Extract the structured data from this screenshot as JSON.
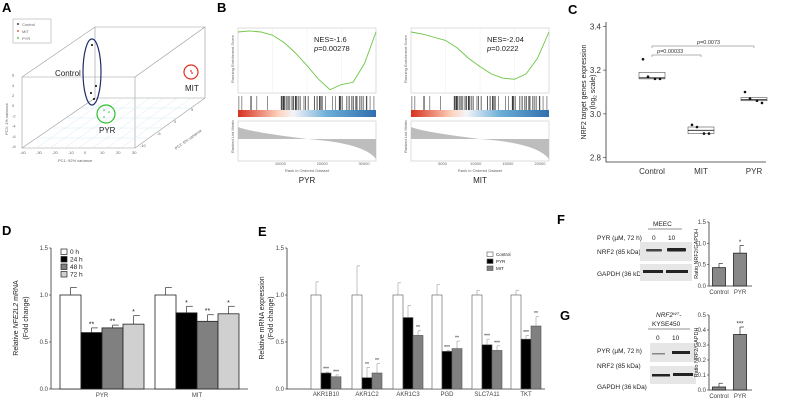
{
  "panels": {
    "A": "A",
    "B": "B",
    "C": "C",
    "D": "D",
    "E": "E",
    "F": "F",
    "G": "G"
  },
  "colors": {
    "control": "#1f2d6b",
    "mit": "#e03020",
    "pyr": "#2bbf2b",
    "gsea_line": "#6cc644"
  },
  "chart_data": [
    {
      "id": "A",
      "type": "scatter",
      "title": "PCA",
      "legend": [
        "Control",
        "MIT",
        "PYR"
      ],
      "legend_position": "top-left",
      "xlabel": "PC1: 92% variance",
      "ylabel": "PC3: 1% variance",
      "zlabel": "PC2: 6% variance",
      "x_ticks": [
        "-40",
        "-30",
        "-20",
        "-10",
        "0",
        "10",
        "20",
        "30"
      ],
      "y_ticks": [
        "-8",
        "-6",
        "-4",
        "-2",
        "0",
        "2",
        "4",
        "6"
      ],
      "z_ticks": [
        "-10",
        "-5",
        "0",
        "5"
      ],
      "group_labels": [
        "Control",
        "MIT",
        "PYR"
      ]
    },
    {
      "id": "B1",
      "type": "line",
      "title": "PYR",
      "xlabel": "Rank in Ordered Dataset",
      "ylabel": "Running Enrichment Score",
      "ylabel2": "Ranked List Metric",
      "annotation_nes": "NES=-1.6",
      "annotation_p_prefix": "p",
      "annotation_p": "=0.00278",
      "x_ticks": [
        "10000",
        "20000",
        "30000"
      ],
      "es": [
        0,
        0.01,
        0.0,
        -0.03,
        -0.1,
        -0.2,
        -0.32,
        -0.45,
        -0.55,
        -0.5,
        -0.48,
        -0.3,
        0
      ]
    },
    {
      "id": "B2",
      "type": "line",
      "title": "MIT",
      "xlabel": "Rank in Ordered Dataset",
      "ylabel": "Running Enrichment Score",
      "ylabel2": "Ranked List Metric",
      "annotation_nes": "NES=-2.04",
      "annotation_p_prefix": "p",
      "annotation_p": "=0.0222",
      "x_ticks": [
        "5000",
        "10000",
        "15000",
        "20000"
      ],
      "es": [
        0,
        -0.02,
        -0.05,
        -0.08,
        -0.15,
        -0.25,
        -0.33,
        -0.4,
        -0.44,
        -0.45,
        -0.4,
        -0.25,
        0
      ]
    },
    {
      "id": "C",
      "type": "box",
      "ylabel": "NRF2 target genes expression",
      "ylabel2": "(log",
      "ylabel_sub": "2",
      "ylabel3": " scale)",
      "categories": [
        "Control",
        "MIT",
        "PYR"
      ],
      "ylim": [
        2.78,
        3.42
      ],
      "y_ticks": [
        "2.8",
        "3.0",
        "3.2",
        "3.4"
      ],
      "points": [
        [
          3.25,
          3.17,
          3.16,
          3.16
        ],
        [
          2.95,
          2.94,
          2.91,
          2.91
        ],
        [
          3.1,
          3.07,
          3.06,
          3.05
        ]
      ],
      "box": [
        [
          3.16,
          3.165,
          3.19
        ],
        [
          2.91,
          2.925,
          2.94
        ],
        [
          3.06,
          3.065,
          3.075
        ]
      ],
      "comparisons": [
        {
          "from": 0,
          "to": 1,
          "p_prefix": "p",
          "p": "=0.00033"
        },
        {
          "from": 0,
          "to": 2,
          "p_prefix": "p",
          "p": "=0.0073"
        }
      ]
    },
    {
      "id": "D",
      "type": "bar",
      "ylabel": "Relative NFE2L2 mRNA",
      "ylabel_pre": "Relative ",
      "ylabel_it": "NFE2L2",
      "ylabel_post": " mRNA",
      "ylabel2": "(Fold change)",
      "categories": [
        "PYR",
        "MIT"
      ],
      "ylim": [
        0,
        1.5
      ],
      "y_ticks": [
        "0.0",
        "0.5",
        "1.0",
        "1.5"
      ],
      "series": [
        {
          "name": "0 h",
          "color": "#ffffff",
          "values": [
            1.0,
            1.0
          ],
          "err": [
            0.08,
            0.08
          ],
          "sig": [
            "",
            ""
          ]
        },
        {
          "name": "24 h",
          "color": "#000000",
          "values": [
            0.6,
            0.81
          ],
          "err": [
            0.05,
            0.07
          ],
          "sig": [
            "**",
            "*"
          ]
        },
        {
          "name": "48 h",
          "color": "#808080",
          "values": [
            0.65,
            0.72
          ],
          "err": [
            0.03,
            0.07
          ],
          "sig": [
            "**",
            "**"
          ]
        },
        {
          "name": "72 h",
          "color": "#d0d0d0",
          "values": [
            0.69,
            0.8
          ],
          "err": [
            0.09,
            0.08
          ],
          "sig": [
            "*",
            "*"
          ]
        }
      ],
      "legend_position": "top-left"
    },
    {
      "id": "E",
      "type": "bar",
      "ylabel": "Relative mRNA expression",
      "ylabel2": "(Fold change)",
      "categories": [
        "AKR1B10",
        "AKR1C2",
        "AKR1C3",
        "PGD",
        "SLC7A11",
        "TKT"
      ],
      "ylim": [
        0,
        1.5
      ],
      "y_ticks": [
        "0.0",
        "0.5",
        "1.0",
        "1.5"
      ],
      "series": [
        {
          "name": "Control",
          "color": "#ffffff",
          "values": [
            1,
            1,
            1,
            1,
            1,
            1
          ],
          "err": [
            0.14,
            0.31,
            0.13,
            0.11,
            0.05,
            0.05
          ],
          "sig": [
            "",
            "",
            "",
            "",
            "",
            ""
          ]
        },
        {
          "name": "PYR",
          "color": "#000000",
          "values": [
            0.17,
            0.12,
            0.76,
            0.4,
            0.47,
            0.53
          ],
          "err": [
            0.01,
            0.11,
            0.13,
            0.01,
            0.06,
            0.04
          ],
          "sig": [
            "***",
            "**",
            "",
            "***",
            "***",
            "***"
          ]
        },
        {
          "name": "MIT",
          "color": "#808080",
          "values": [
            0.13,
            0.17,
            0.57,
            0.43,
            0.41,
            0.67
          ],
          "err": [
            0.02,
            0.1,
            0.05,
            0.08,
            0.05,
            0.1
          ],
          "sig": [
            "***",
            "**",
            "**",
            "**",
            "***",
            "**"
          ]
        }
      ],
      "legend_position": "top-right"
    },
    {
      "id": "F",
      "type": "bar",
      "ylabel": "Ratio NRF2/GAPDH",
      "categories": [
        "Control",
        "PYR"
      ],
      "values": [
        0.43,
        0.77
      ],
      "err": [
        0.1,
        0.18
      ],
      "sig": [
        "",
        "*"
      ],
      "ylim": [
        0,
        1.5
      ],
      "y_ticks": [
        "0.0",
        "0.5",
        "1.0",
        "1.5"
      ]
    },
    {
      "id": "G",
      "type": "bar",
      "ylabel": "Ratio NRF2/GAPDH",
      "categories": [
        "Control",
        "PYR"
      ],
      "values": [
        0.02,
        0.37
      ],
      "err": [
        0.025,
        0.05
      ],
      "sig": [
        "",
        "***"
      ],
      "ylim": [
        0,
        0.5
      ],
      "y_ticks": [
        "0.0",
        "0.1",
        "0.2",
        "0.3",
        "0.4",
        "0.5"
      ]
    }
  ],
  "blots": {
    "F": {
      "treatment": "PYR (µM, 72 h)",
      "cell_line": "MEEC",
      "lanes": [
        "0",
        "10"
      ],
      "rows": [
        "NRF2 (85 kDa)",
        "GAPDH (36 kDa)"
      ]
    },
    "G": {
      "treatment": "PYR (µM, 72 h)",
      "cell_line_it": "NRF2",
      "cell_line_sup": "WT",
      "cell_line_dash": "-",
      "cell_line2": "KYSE450",
      "lanes": [
        "0",
        "10"
      ],
      "rows": [
        "NRF2 (85 kDa)",
        "GAPDH (36 kDa)"
      ]
    }
  }
}
